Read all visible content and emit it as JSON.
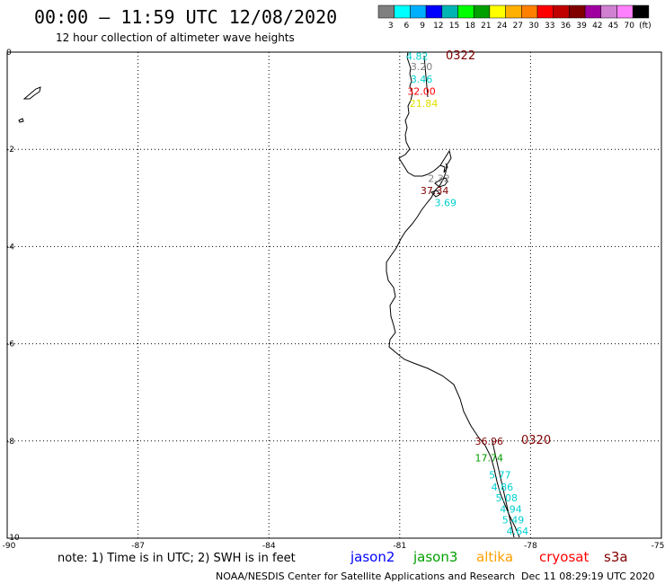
{
  "header": {
    "title": "00:00 – 11:59 UTC 12/08/2020",
    "subtitle": "12 hour collection of altimeter wave heights"
  },
  "legend": {
    "colors": [
      "#808080",
      "#00ffff",
      "#00b0ff",
      "#0000ff",
      "#00b4b4",
      "#00ff00",
      "#00a000",
      "#ffff00",
      "#ffb000",
      "#ff8000",
      "#ff0000",
      "#c00000",
      "#800000",
      "#a000a0",
      "#d080d0",
      "#ff80ff",
      "#000000"
    ],
    "labels": [
      "3",
      "6",
      "9",
      "12",
      "15",
      "18",
      "21",
      "24",
      "27",
      "30",
      "33",
      "36",
      "39",
      "42",
      "45",
      "70",
      "(ft)"
    ]
  },
  "axes": {
    "lon_ticks": [
      "-90",
      "-87",
      "-84",
      "-81",
      "-78",
      "-75"
    ],
    "lat_ticks": [
      "0",
      "-2",
      "-4",
      "-6",
      "-8",
      "-10"
    ],
    "lon_range": [
      -90,
      -75
    ],
    "lat_range": [
      -10,
      0
    ],
    "grid": true
  },
  "passes": [
    {
      "time": "0322",
      "color": "#800000"
    },
    {
      "time": "0320",
      "color": "#800000"
    }
  ],
  "measurements": [
    {
      "value": "4.82",
      "color": "#00d0d0",
      "lon": -80.6,
      "lat": -0.08
    },
    {
      "value": "3.20",
      "color": "#808080",
      "lon": -80.5,
      "lat": -0.3
    },
    {
      "value": "3.46",
      "color": "#00d0d0",
      "lon": -80.5,
      "lat": -0.55
    },
    {
      "value": "32.00",
      "color": "#ff0000",
      "lon": -80.5,
      "lat": -0.8
    },
    {
      "value": "21.84",
      "color": "#e0e000",
      "lon": -80.45,
      "lat": -1.05
    },
    {
      "value": "2.32",
      "color": "#808080",
      "lon": -80.1,
      "lat": -2.6
    },
    {
      "value": "37.34",
      "color": "#800000",
      "lon": -80.2,
      "lat": -2.85
    },
    {
      "value": "3.69",
      "color": "#00d0d0",
      "lon": -79.95,
      "lat": -3.1
    },
    {
      "value": "36.96",
      "color": "#800000",
      "lon": -78.95,
      "lat": -8.0
    },
    {
      "value": "17.74",
      "color": "#00a000",
      "lon": -78.95,
      "lat": -8.35
    },
    {
      "value": "5.77",
      "color": "#00d0d0",
      "lon": -78.7,
      "lat": -8.7
    },
    {
      "value": "4.86",
      "color": "#00d0d0",
      "lon": -78.65,
      "lat": -8.95
    },
    {
      "value": "5.08",
      "color": "#00d0d0",
      "lon": -78.55,
      "lat": -9.17
    },
    {
      "value": "4.94",
      "color": "#00d0d0",
      "lon": -78.45,
      "lat": -9.4
    },
    {
      "value": "5.49",
      "color": "#00d0d0",
      "lon": -78.4,
      "lat": -9.62
    },
    {
      "value": "4.64",
      "color": "#00d0d0",
      "lon": -78.3,
      "lat": -9.85
    }
  ],
  "footer": {
    "note": "note: 1) Time is in UTC; 2) SWH is in feet",
    "satellites": [
      {
        "name": "jason2",
        "color": "#0000ff"
      },
      {
        "name": "jason3",
        "color": "#00a000"
      },
      {
        "name": "altika",
        "color": "#ffa000"
      },
      {
        "name": "cryosat",
        "color": "#ff0000"
      },
      {
        "name": "s3a",
        "color": "#800000"
      }
    ],
    "credit": "NOAA/NESDIS Center for Satellite Applications and Research",
    "generated": "Dec 11 08:29:19 UTC 2020"
  }
}
